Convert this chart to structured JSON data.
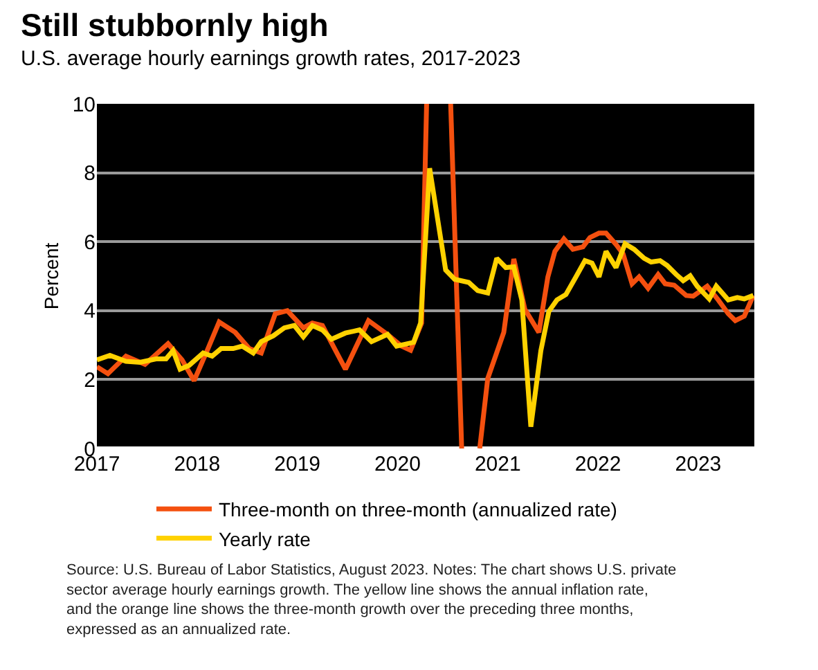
{
  "chart_data": {
    "type": "line",
    "title": "Still stubbornly high",
    "subtitle": "U.S. average hourly earnings growth rates, 2017-2023",
    "ylabel": "Percent",
    "xlim": [
      2017,
      2023.56
    ],
    "xticks": [
      2017,
      2018,
      2019,
      2020,
      2021,
      2022,
      2023
    ],
    "ylim": [
      0,
      10
    ],
    "yticks": [
      0,
      2,
      4,
      6,
      8,
      10
    ],
    "grid": "y",
    "legend": "bottom",
    "line_style": "solid",
    "marker": "none",
    "series": [
      {
        "name": "Three-month on three-month (annualized rate)",
        "color": "#f4500f",
        "x": [
          2017.0,
          2017.11,
          2017.29,
          2017.48,
          2017.71,
          2017.85,
          2017.97,
          2018.1,
          2018.22,
          2018.38,
          2018.52,
          2018.64,
          2018.78,
          2018.9,
          2019.06,
          2019.15,
          2019.25,
          2019.48,
          2019.71,
          2019.9,
          2020.04,
          2020.13,
          2020.24,
          2020.29,
          2020.4,
          2020.53,
          2020.64,
          2020.73,
          2020.82,
          2020.9,
          2021.06,
          2021.16,
          2021.27,
          2021.41,
          2021.5,
          2021.57,
          2021.66,
          2021.75,
          2021.85,
          2021.92,
          2022.01,
          2022.08,
          2022.18,
          2022.25,
          2022.34,
          2022.41,
          2022.5,
          2022.6,
          2022.67,
          2022.76,
          2022.88,
          2022.95,
          2023.09,
          2023.2,
          2023.3,
          2023.37,
          2023.46,
          2023.55
        ],
        "values": [
          2.37,
          2.17,
          2.68,
          2.44,
          3.04,
          2.57,
          1.97,
          2.84,
          3.67,
          3.37,
          2.9,
          2.77,
          3.91,
          4.0,
          3.5,
          3.64,
          3.57,
          2.3,
          3.71,
          3.31,
          2.97,
          2.85,
          3.64,
          10,
          null,
          10,
          0,
          null,
          0,
          2.03,
          3.37,
          5.5,
          4.04,
          3.37,
          4.98,
          5.72,
          6.08,
          5.78,
          5.85,
          6.12,
          6.25,
          6.25,
          5.92,
          5.65,
          4.78,
          4.98,
          4.65,
          5.05,
          4.78,
          4.74,
          4.44,
          4.42,
          4.71,
          4.31,
          3.91,
          3.71,
          3.84,
          4.44
        ]
      },
      {
        "name": "Yearly rate",
        "color": "#ffd200",
        "x": [
          2017.0,
          2017.13,
          2017.29,
          2017.43,
          2017.59,
          2017.69,
          2017.76,
          2017.83,
          2017.92,
          2018.06,
          2018.15,
          2018.24,
          2018.36,
          2018.45,
          2018.56,
          2018.64,
          2018.76,
          2018.87,
          2018.97,
          2019.06,
          2019.15,
          2019.25,
          2019.34,
          2019.48,
          2019.62,
          2019.74,
          2019.9,
          2019.99,
          2020.16,
          2020.23,
          2020.32,
          2020.48,
          2020.57,
          2020.71,
          2020.8,
          2020.9,
          2020.99,
          2021.08,
          2021.16,
          2021.24,
          2021.33,
          2021.43,
          2021.51,
          2021.59,
          2021.68,
          2021.78,
          2021.87,
          2021.94,
          2022.01,
          2022.08,
          2022.18,
          2022.27,
          2022.36,
          2022.46,
          2022.53,
          2022.62,
          2022.69,
          2022.78,
          2022.85,
          2022.92,
          2022.99,
          2023.11,
          2023.18,
          2023.3,
          2023.39,
          2023.46,
          2023.55
        ],
        "values": [
          2.57,
          2.7,
          2.53,
          2.5,
          2.6,
          2.6,
          2.84,
          2.3,
          2.41,
          2.77,
          2.68,
          2.9,
          2.9,
          2.97,
          2.77,
          3.1,
          3.27,
          3.5,
          3.57,
          3.24,
          3.57,
          3.44,
          3.17,
          3.35,
          3.44,
          3.1,
          3.31,
          2.97,
          3.08,
          3.64,
          8.13,
          5.18,
          4.91,
          4.82,
          4.58,
          4.51,
          5.52,
          5.25,
          5.27,
          4.31,
          0.63,
          2.84,
          3.98,
          4.31,
          4.47,
          4.98,
          5.45,
          5.38,
          4.98,
          5.72,
          5.25,
          5.94,
          5.78,
          5.52,
          5.41,
          5.45,
          5.31,
          5.05,
          4.87,
          5.01,
          4.71,
          4.34,
          4.71,
          4.31,
          4.38,
          4.34,
          4.44
        ]
      }
    ],
    "annotations": [
      "Source: U.S. Bureau of Labor Statistics, August 2023. Notes: The chart shows U.S. private sector average hourly earnings growth. The yellow line shows the annual inflation rate, and the orange line shows the three-month growth over the preceding three months, expressed as an annualized rate."
    ]
  }
}
